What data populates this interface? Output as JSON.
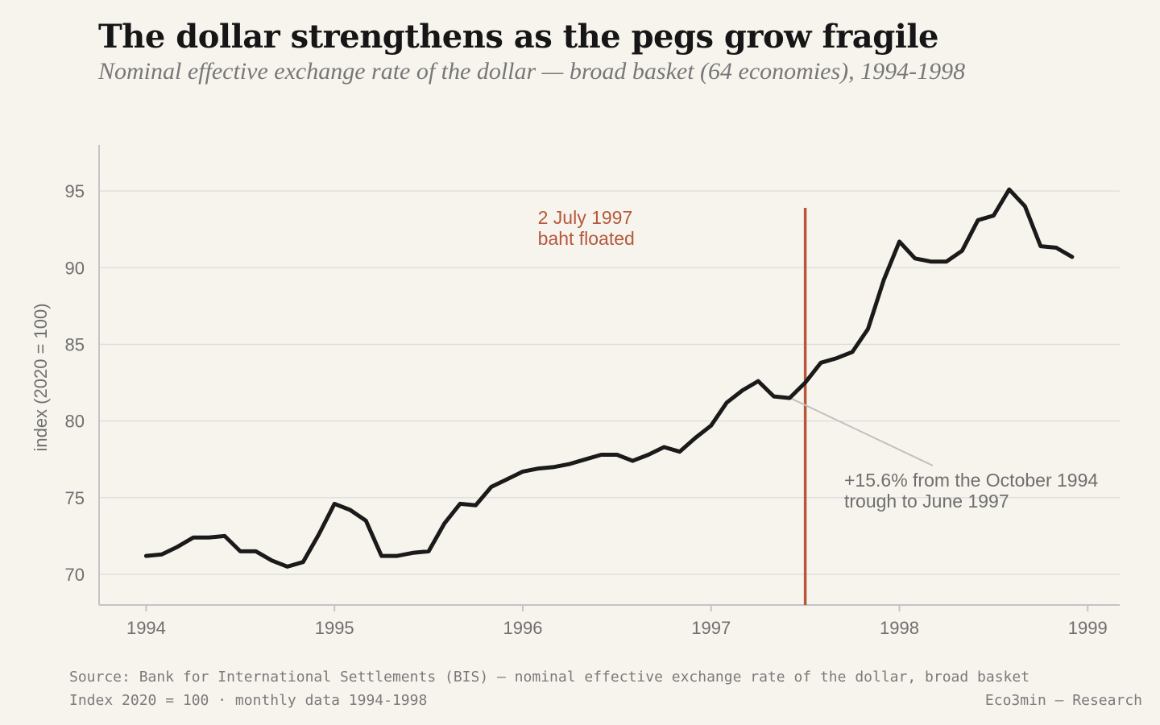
{
  "header": {
    "title": "The dollar strengthens as the pegs grow fragile",
    "subtitle": "Nominal effective exchange rate of the dollar — broad basket (64 economies), 1994-1998"
  },
  "footer": {
    "source_line": "Source: Bank for International Settlements (BIS) — nominal effective exchange rate of the dollar, broad basket",
    "note_line": "Index 2020 = 100 · monthly data 1994-1998",
    "credit": "Eco3min — Research"
  },
  "colors": {
    "background": "#f7f4ee",
    "line": "#1a1a1a",
    "event": "#b5583a",
    "grid": "#dcdcdc",
    "axis": "#c4c4c4",
    "muted_text": "#6f6f6f"
  },
  "chart_data": {
    "type": "line",
    "ylabel": "index (2020 = 100)",
    "xlabel": "",
    "xlim": [
      1993.75,
      1999.17
    ],
    "ylim": [
      68,
      98
    ],
    "grid": "horizontal",
    "x_ticks": [
      1994,
      1995,
      1996,
      1997,
      1998,
      1999
    ],
    "y_ticks": [
      70,
      75,
      80,
      85,
      90,
      95
    ],
    "series": [
      {
        "x": [
          1994.0,
          1994.083,
          1994.167,
          1994.25,
          1994.333,
          1994.417,
          1994.5,
          1994.583,
          1994.667,
          1994.75,
          1994.833,
          1994.917,
          1995.0,
          1995.083,
          1995.167,
          1995.25,
          1995.333,
          1995.417,
          1995.5,
          1995.583,
          1995.667,
          1995.75,
          1995.833,
          1995.917,
          1996.0,
          1996.083,
          1996.167,
          1996.25,
          1996.333,
          1996.417,
          1996.5,
          1996.583,
          1996.667,
          1996.75,
          1996.833,
          1996.917,
          1997.0,
          1997.083,
          1997.167,
          1997.25,
          1997.333,
          1997.417,
          1997.5,
          1997.583,
          1997.667,
          1997.75,
          1997.833,
          1997.917,
          1998.0,
          1998.083,
          1998.167,
          1998.25,
          1998.333,
          1998.417,
          1998.5,
          1998.583,
          1998.667,
          1998.75,
          1998.833,
          1998.917
        ],
        "values": [
          71.2,
          71.3,
          71.8,
          72.4,
          72.4,
          72.5,
          71.5,
          71.5,
          70.9,
          70.5,
          70.8,
          72.6,
          74.6,
          74.2,
          73.5,
          71.2,
          71.2,
          71.4,
          71.5,
          73.3,
          74.6,
          74.5,
          75.7,
          76.2,
          76.7,
          76.9,
          77.0,
          77.2,
          77.5,
          77.8,
          77.8,
          77.4,
          77.8,
          78.3,
          78.0,
          78.9,
          79.7,
          81.2,
          82.0,
          82.6,
          81.6,
          81.5,
          82.5,
          83.8,
          84.1,
          84.5,
          86.0,
          89.2,
          91.7,
          90.6,
          90.4,
          90.4,
          91.1,
          93.1,
          93.4,
          95.1,
          94.0,
          91.4,
          91.3,
          90.7
        ]
      }
    ],
    "annotations": {
      "event_x": 1997.5,
      "event_lines": [
        "2 July 1997",
        "baht floated"
      ],
      "callout_target": {
        "x": 1997.42,
        "y": 81.5
      },
      "callout_lines": [
        "+15.6% from the October 1994",
        "trough to June 1997"
      ]
    }
  }
}
